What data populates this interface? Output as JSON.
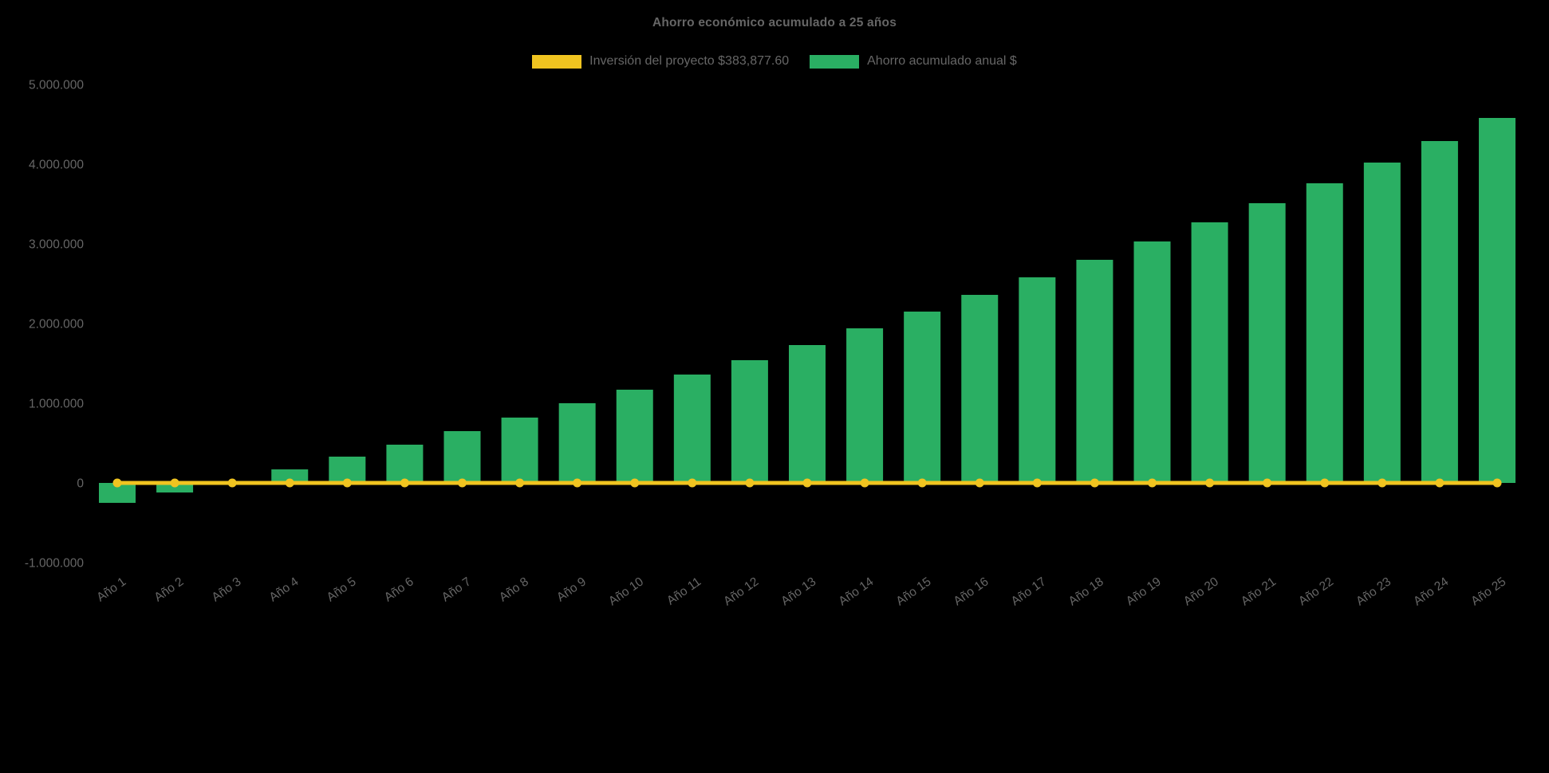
{
  "chart_data": {
    "type": "bar",
    "title": "Ahorro económico acumulado a 25 años",
    "background": "#000000",
    "text_color": "#666666",
    "grid": false,
    "legend_position": "top",
    "categories": [
      "Año 1",
      "Año 2",
      "Año 3",
      "Año 4",
      "Año 5",
      "Año 6",
      "Año 7",
      "Año 8",
      "Año 9",
      "Año 10",
      "Año 11",
      "Año 12",
      "Año 13",
      "Año 14",
      "Año 15",
      "Año 16",
      "Año 17",
      "Año 18",
      "Año 19",
      "Año 20",
      "Año 21",
      "Año 22",
      "Año 23",
      "Año 24",
      "Año 25"
    ],
    "series": [
      {
        "name": "Inversión del proyecto $383,877.60",
        "type": "line",
        "color": "#f0c420",
        "values": [
          0,
          0,
          0,
          0,
          0,
          0,
          0,
          0,
          0,
          0,
          0,
          0,
          0,
          0,
          0,
          0,
          0,
          0,
          0,
          0,
          0,
          0,
          0,
          0,
          0
        ]
      },
      {
        "name": "Ahorro acumulado anual $",
        "type": "bar",
        "color": "#2aaf63",
        "values": [
          -250000,
          -120000,
          20000,
          170000,
          330000,
          480000,
          650000,
          820000,
          1000000,
          1170000,
          1360000,
          1540000,
          1730000,
          1940000,
          2150000,
          2360000,
          2580000,
          2800000,
          3030000,
          3270000,
          3510000,
          3760000,
          4020000,
          4290000,
          4580000
        ]
      }
    ],
    "ylim": [
      -1000000,
      5000000
    ],
    "yticks": [
      5000000,
      4000000,
      3000000,
      2000000,
      1000000,
      0,
      -1000000
    ],
    "ytick_labels": [
      "5.000.000",
      "4.000.000",
      "3.000.000",
      "2.000.000",
      "1.000.000",
      "0",
      "-1.000.000"
    ]
  }
}
